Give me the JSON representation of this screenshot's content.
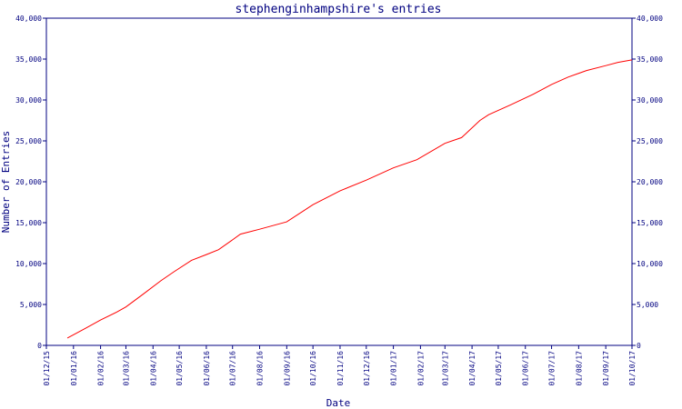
{
  "chart_data": {
    "type": "line",
    "title": "stephenginhampshire's entries",
    "xlabel": "Date",
    "ylabel": "Number of Entries",
    "ylim": [
      0,
      40000
    ],
    "xlim": [
      "2015-12-01",
      "2017-10-01"
    ],
    "grid": false,
    "legend": "none",
    "y_ticks": [
      0,
      5000,
      10000,
      15000,
      20000,
      25000,
      30000,
      35000,
      40000
    ],
    "y_tick_labels": [
      "0",
      "5,000",
      "10,000",
      "15,000",
      "20,000",
      "25,000",
      "30,000",
      "35,000",
      "40,000"
    ],
    "x_ticks": [
      "2015-12-01",
      "2016-01-01",
      "2016-02-01",
      "2016-03-01",
      "2016-04-01",
      "2016-05-01",
      "2016-06-01",
      "2016-07-01",
      "2016-08-01",
      "2016-09-01",
      "2016-10-01",
      "2016-11-01",
      "2016-12-01",
      "2017-01-01",
      "2017-02-01",
      "2017-03-01",
      "2017-04-01",
      "2017-05-01",
      "2017-06-01",
      "2017-07-01",
      "2017-08-01",
      "2017-09-01",
      "2017-10-01"
    ],
    "x_tick_labels": [
      "01/12/15",
      "01/01/16",
      "01/02/16",
      "01/03/16",
      "01/04/16",
      "01/05/16",
      "01/06/16",
      "01/07/16",
      "01/08/16",
      "01/09/16",
      "01/10/16",
      "01/11/16",
      "01/12/16",
      "01/01/17",
      "01/02/17",
      "01/03/17",
      "01/04/17",
      "01/05/17",
      "01/06/17",
      "01/07/17",
      "01/08/17",
      "01/09/17",
      "01/10/17"
    ],
    "series": [
      {
        "color": "#ff0000",
        "points": [
          [
            "2015-12-25",
            900
          ],
          [
            "2016-01-15",
            2100
          ],
          [
            "2016-02-01",
            3100
          ],
          [
            "2016-02-20",
            4100
          ],
          [
            "2016-03-01",
            4700
          ],
          [
            "2016-03-20",
            6200
          ],
          [
            "2016-04-10",
            7900
          ],
          [
            "2016-04-25",
            9000
          ],
          [
            "2016-05-15",
            10400
          ],
          [
            "2016-06-01",
            11100
          ],
          [
            "2016-06-15",
            11700
          ],
          [
            "2016-07-01",
            12900
          ],
          [
            "2016-07-10",
            13600
          ],
          [
            "2016-08-01",
            14200
          ],
          [
            "2016-09-01",
            15100
          ],
          [
            "2016-10-01",
            17200
          ],
          [
            "2016-11-01",
            18900
          ],
          [
            "2016-12-01",
            20200
          ],
          [
            "2017-01-01",
            21700
          ],
          [
            "2017-01-28",
            22700
          ],
          [
            "2017-03-01",
            24700
          ],
          [
            "2017-03-20",
            25400
          ],
          [
            "2017-04-10",
            27500
          ],
          [
            "2017-04-20",
            28200
          ],
          [
            "2017-05-15",
            29400
          ],
          [
            "2017-06-10",
            30700
          ],
          [
            "2017-07-01",
            31900
          ],
          [
            "2017-07-20",
            32800
          ],
          [
            "2017-08-10",
            33600
          ],
          [
            "2017-09-01",
            34200
          ],
          [
            "2017-09-15",
            34600
          ],
          [
            "2017-10-01",
            34900
          ]
        ]
      }
    ],
    "colors": {
      "axis": "#000080",
      "line": "#ff0000",
      "background": "#ffffff"
    }
  }
}
